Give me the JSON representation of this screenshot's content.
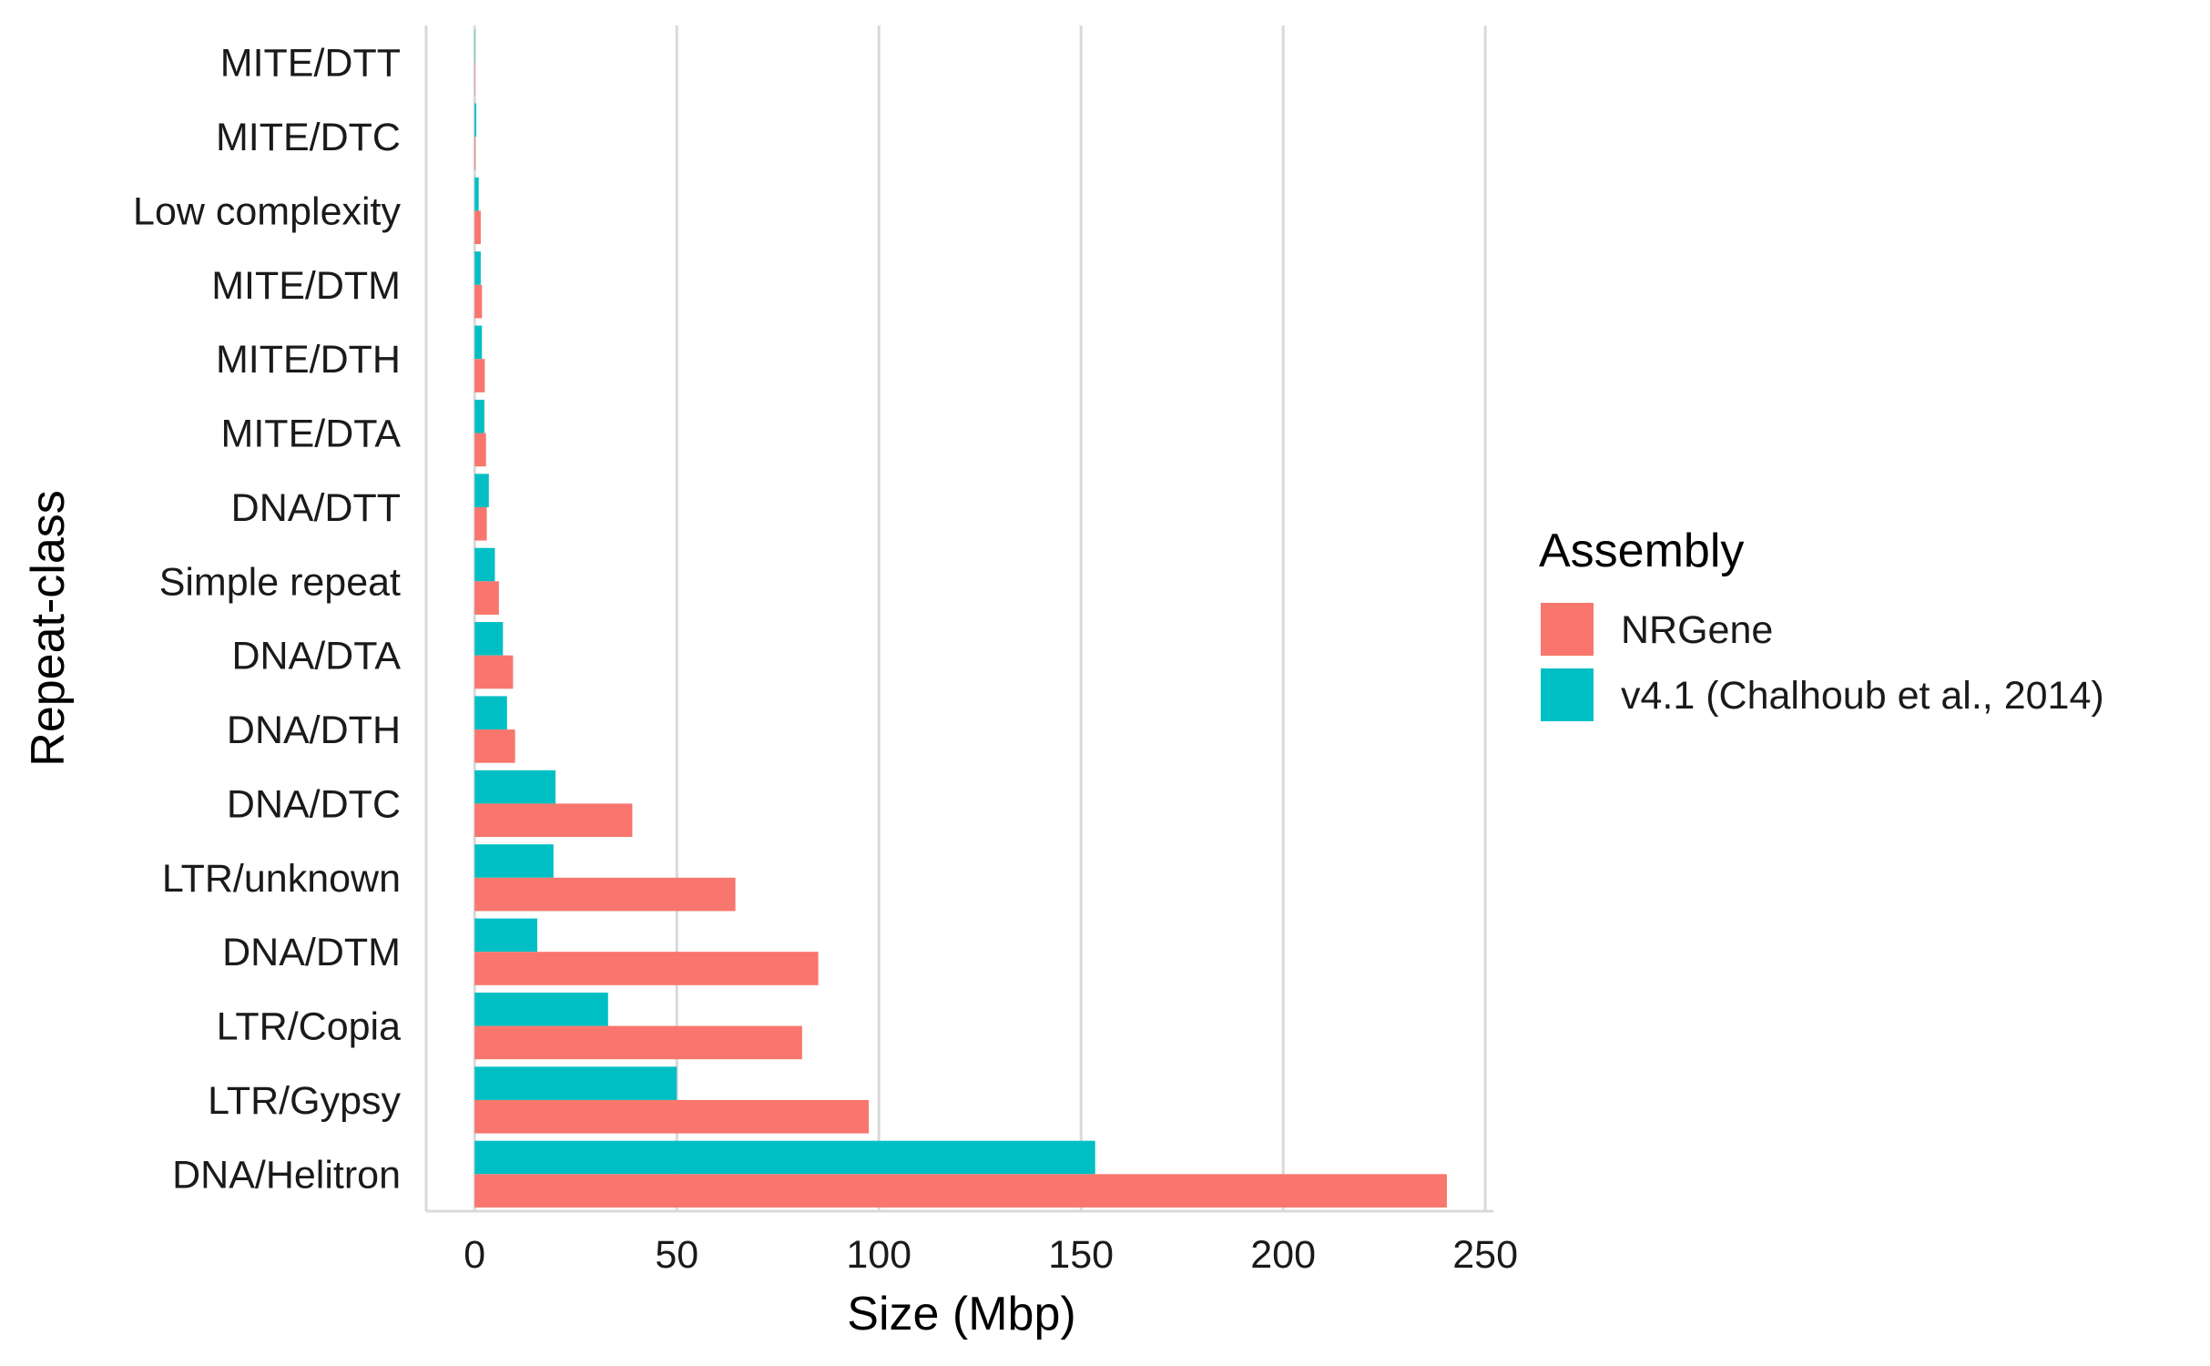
{
  "chart_data": {
    "type": "bar",
    "orientation": "horizontal",
    "title": "",
    "xlabel": "Size (Mbp)",
    "ylabel": "Repeat-class",
    "xlim": [
      -12,
      252
    ],
    "xticks": [
      0,
      50,
      100,
      150,
      200,
      250
    ],
    "xtick_labels": [
      "0",
      "50",
      "100",
      "150",
      "200",
      "250"
    ],
    "grid": "vertical major",
    "categories": [
      "MITE/DTT",
      "MITE/DTC",
      "Low complexity",
      "MITE/DTM",
      "MITE/DTH",
      "MITE/DTA",
      "DNA/DTT",
      "Simple repeat",
      "DNA/DTA",
      "DNA/DTH",
      "DNA/DTC",
      "LTR/unknown",
      "DNA/DTM",
      "LTR/Copia",
      "LTR/Gypsy",
      "DNA/Helitron"
    ],
    "series": [
      {
        "name": "NRGene",
        "color": "#F8766D",
        "values": [
          0.1,
          0.2,
          1.5,
          1.8,
          2.5,
          2.8,
          3.0,
          6.0,
          9.5,
          10.0,
          39.0,
          64.5,
          85.0,
          81.0,
          97.5,
          240.5
        ]
      },
      {
        "name": "v4.1 (Chalhoub et al., 2014)",
        "color": "#00BFC4",
        "values": [
          0.1,
          0.4,
          1.0,
          1.5,
          1.8,
          2.4,
          3.5,
          5.0,
          7.0,
          8.0,
          20.0,
          19.5,
          15.5,
          33.0,
          50.0,
          153.5
        ]
      }
    ],
    "legend": {
      "title": "Assembly",
      "position": "right"
    }
  }
}
